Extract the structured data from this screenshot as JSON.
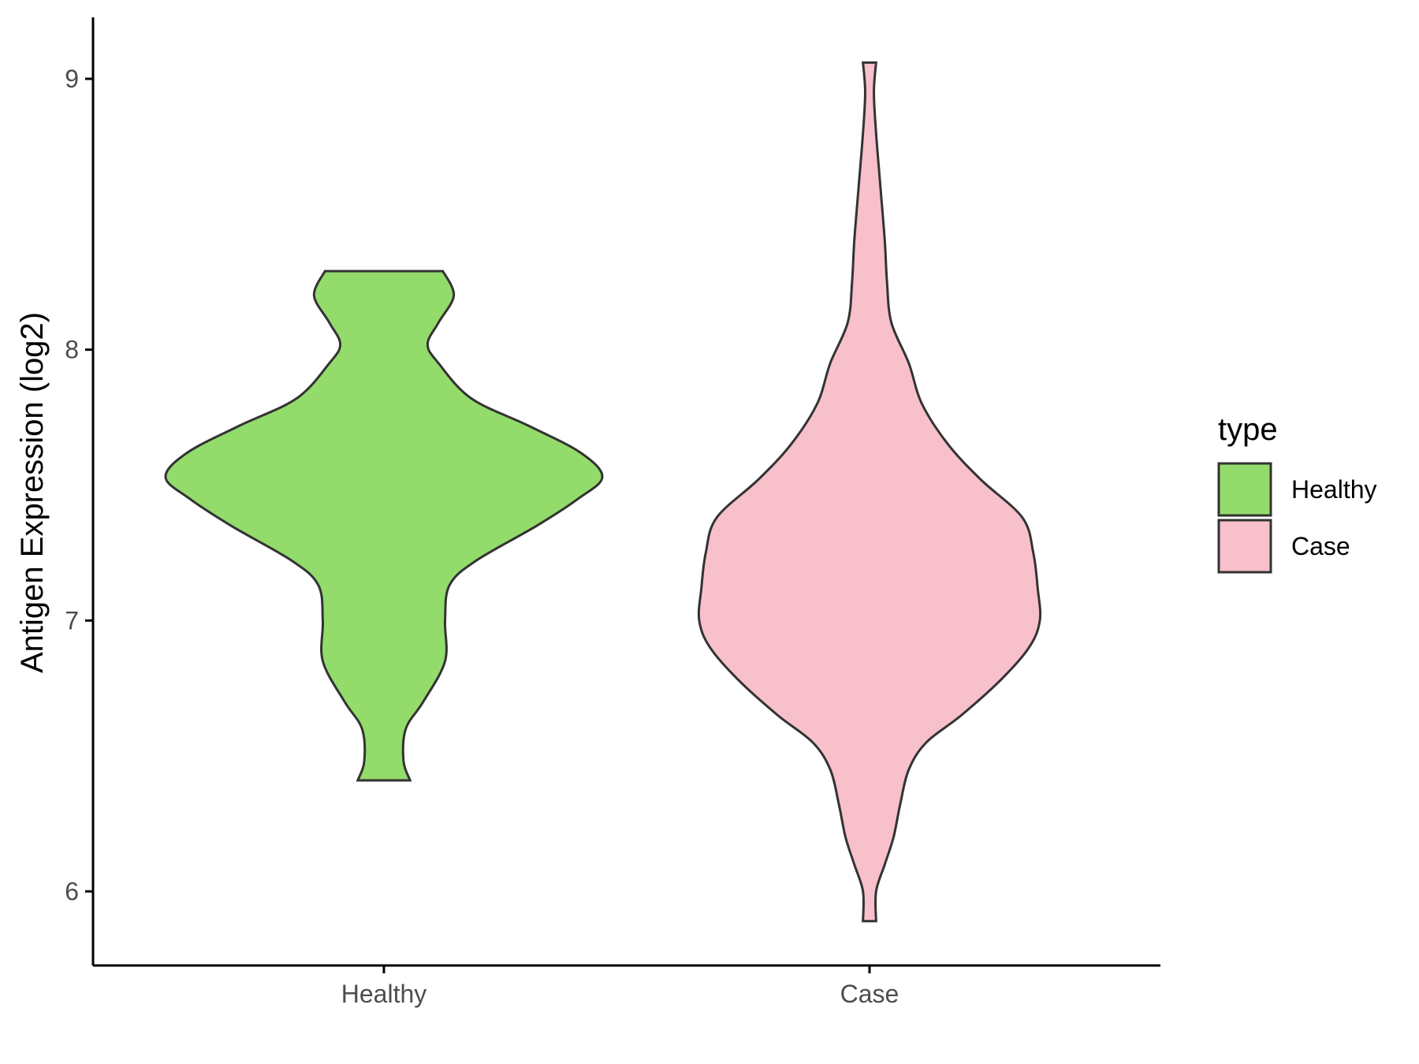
{
  "chart_data": {
    "type": "violin",
    "title": "",
    "xlabel": "",
    "ylabel": "Antigen Expression (log2)",
    "ylim": [
      5.72,
      9.22
    ],
    "yticks": [
      6,
      7,
      8,
      9
    ],
    "categories": [
      "Healthy",
      "Case"
    ],
    "grid": false,
    "legend": {
      "title": "type",
      "position": "right",
      "entries": [
        {
          "label": "Healthy",
          "color": "#93DC6B"
        },
        {
          "label": "Case",
          "color": "#F7C0CB"
        }
      ]
    },
    "series": [
      {
        "name": "Healthy",
        "color": "#93DC6B",
        "min": 6.41,
        "max": 8.29,
        "density": [
          [
            6.41,
            0.12
          ],
          [
            6.48,
            0.09
          ],
          [
            6.6,
            0.1
          ],
          [
            6.7,
            0.18
          ],
          [
            6.85,
            0.28
          ],
          [
            7.0,
            0.28
          ],
          [
            7.13,
            0.3
          ],
          [
            7.22,
            0.42
          ],
          [
            7.35,
            0.7
          ],
          [
            7.45,
            0.89
          ],
          [
            7.53,
            1.0
          ],
          [
            7.62,
            0.9
          ],
          [
            7.72,
            0.66
          ],
          [
            7.82,
            0.4
          ],
          [
            7.95,
            0.25
          ],
          [
            8.02,
            0.2
          ],
          [
            8.1,
            0.25
          ],
          [
            8.2,
            0.32
          ],
          [
            8.29,
            0.27
          ]
        ]
      },
      {
        "name": "Case",
        "color": "#F7C0CB",
        "min": 5.89,
        "max": 9.06,
        "density": [
          [
            5.89,
            0.03
          ],
          [
            6.0,
            0.03
          ],
          [
            6.1,
            0.07
          ],
          [
            6.2,
            0.11
          ],
          [
            6.32,
            0.14
          ],
          [
            6.45,
            0.18
          ],
          [
            6.55,
            0.26
          ],
          [
            6.65,
            0.42
          ],
          [
            6.78,
            0.6
          ],
          [
            6.9,
            0.73
          ],
          [
            7.0,
            0.78
          ],
          [
            7.12,
            0.77
          ],
          [
            7.25,
            0.75
          ],
          [
            7.38,
            0.7
          ],
          [
            7.52,
            0.51
          ],
          [
            7.65,
            0.36
          ],
          [
            7.8,
            0.24
          ],
          [
            7.95,
            0.18
          ],
          [
            8.1,
            0.1
          ],
          [
            8.25,
            0.08
          ],
          [
            8.4,
            0.07
          ],
          [
            8.6,
            0.05
          ],
          [
            8.8,
            0.03
          ],
          [
            8.95,
            0.02
          ],
          [
            9.06,
            0.03
          ]
        ]
      }
    ]
  }
}
